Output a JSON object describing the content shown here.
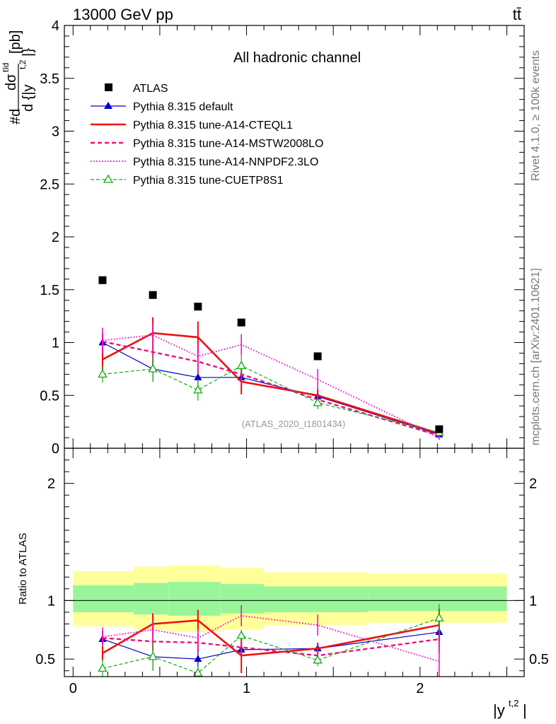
{
  "header": {
    "energy": "13000 GeV pp",
    "process": "tt̄"
  },
  "side_labels": {
    "rivet": "Rivet 4.1.0, ≥ 100k events",
    "mcplots": "mcplots.cern.ch [arXiv:2401.10621]"
  },
  "chart_data": {
    "type": "line",
    "title": "All hadronic channel",
    "analysis_id": "(ATLAS_2020_I1801434)",
    "ylabel_main": "#d dσ^{tīd} / d{|y^{t,2}|} [pb]",
    "ylabel_main_parts": {
      "prefix": "#d",
      "num": "dσ",
      "num_sup": "tīd",
      "den": "d {|y",
      "den_sup": "t,2",
      "den_end": "|}",
      "unit": "[pb]"
    },
    "ylabel_ratio": "Ratio to ATLAS",
    "xlabel": "|y^{t,2}|",
    "xlabel_parts": {
      "base": "|y",
      "sup": "t,2",
      "end": "|"
    },
    "xlim": [
      -0.05,
      2.6
    ],
    "ylim_main": [
      0,
      4
    ],
    "ylim_ratio": [
      0.35,
      2.3
    ],
    "x_ticks": [
      "0",
      "1",
      "2"
    ],
    "y_ticks_main": [
      "0",
      "0.5",
      "1",
      "1.5",
      "2",
      "2.5",
      "3",
      "3.5",
      "4"
    ],
    "y_ticks_ratio": [
      "0.5",
      "1",
      "2"
    ],
    "bin_edges": [
      0.0,
      0.35,
      0.55,
      0.85,
      1.1,
      1.7,
      2.5
    ],
    "x": [
      0.17,
      0.46,
      0.72,
      0.97,
      1.41,
      2.11
    ],
    "band_inner": [
      [
        0.9,
        1.13
      ],
      [
        0.88,
        1.15
      ],
      [
        0.87,
        1.16
      ],
      [
        0.89,
        1.14
      ],
      [
        0.9,
        1.12
      ],
      [
        0.91,
        1.12
      ]
    ],
    "band_outer": [
      [
        0.78,
        1.25
      ],
      [
        0.75,
        1.29
      ],
      [
        0.73,
        1.3
      ],
      [
        0.75,
        1.28
      ],
      [
        0.79,
        1.24
      ],
      [
        0.81,
        1.23
      ]
    ],
    "series": [
      {
        "name": "ATLAS",
        "style": "data",
        "color": "#000000",
        "values": [
          1.59,
          1.45,
          1.34,
          1.19,
          0.87,
          0.18
        ]
      },
      {
        "name": "Pythia 8.315 default",
        "style": "solid",
        "width": 1.2,
        "marker": "triangle",
        "color": "#0000cc",
        "values": [
          1.0,
          0.75,
          0.67,
          0.67,
          0.49,
          0.13
        ],
        "errors": [
          0.05,
          0.12,
          0.09,
          0.08,
          0.05,
          0.02
        ],
        "ratio": [
          0.67,
          0.52,
          0.5,
          0.58,
          0.59,
          0.73
        ],
        "ratio_errors": [
          0.04,
          0.12,
          0.08,
          0.05,
          0.05,
          0.05
        ]
      },
      {
        "name": "Pythia 8.315 tune-A14-CTEQL1",
        "style": "solid",
        "width": 2.6,
        "marker": "none",
        "color": "#ee1111",
        "values": [
          0.84,
          1.09,
          1.05,
          0.63,
          0.5,
          0.14
        ],
        "errors": [
          0.1,
          0.15,
          0.15,
          0.12,
          0.06,
          0.03
        ],
        "ratio": [
          0.55,
          0.8,
          0.83,
          0.53,
          0.59,
          0.79
        ],
        "ratio_errors": [
          0.06,
          0.09,
          0.09,
          0.15,
          0.05,
          0.14
        ]
      },
      {
        "name": "Pythia 8.315 tune-A14-MSTW2008LO",
        "style": "dashed",
        "width": 2.4,
        "marker": "none",
        "color": "#ee1177",
        "values": [
          1.01,
          0.91,
          0.82,
          0.7,
          0.46,
          0.12
        ],
        "errors": [
          0.08,
          0.12,
          0.12,
          0.1,
          0.06,
          0.02
        ],
        "ratio": [
          0.68,
          0.65,
          0.64,
          0.6,
          0.53,
          0.67
        ],
        "ratio_errors": [
          0.06,
          0.08,
          0.08,
          0.07,
          0.05,
          0.12
        ]
      },
      {
        "name": "Pythia 8.315 tune-A14-NNPDF2.3LO",
        "style": "dotted",
        "width": 2.0,
        "marker": "none",
        "color": "#ee11cc",
        "values": [
          1.02,
          1.07,
          0.87,
          0.98,
          0.65,
          0.1
        ],
        "errors": [
          0.12,
          0.12,
          0.12,
          0.1,
          0.1,
          0.02
        ],
        "ratio": [
          0.69,
          0.75,
          0.68,
          0.87,
          0.79,
          0.48
        ],
        "ratio_errors": [
          0.08,
          0.08,
          0.09,
          0.09,
          0.09,
          0.14
        ]
      },
      {
        "name": "Pythia 8.315 tune-CUETP8S1",
        "style": "dashed",
        "width": 1.2,
        "marker": "triangle-open",
        "color": "#11aa11",
        "values": [
          0.7,
          0.75,
          0.55,
          0.78,
          0.43,
          0.15
        ],
        "errors": [
          0.08,
          0.12,
          0.1,
          0.1,
          0.06,
          0.02
        ],
        "ratio": [
          0.42,
          0.52,
          0.38,
          0.7,
          0.49,
          0.85
        ],
        "ratio_errors": [
          0.08,
          0.12,
          0.06,
          0.05,
          0.05,
          0.12
        ]
      }
    ]
  }
}
